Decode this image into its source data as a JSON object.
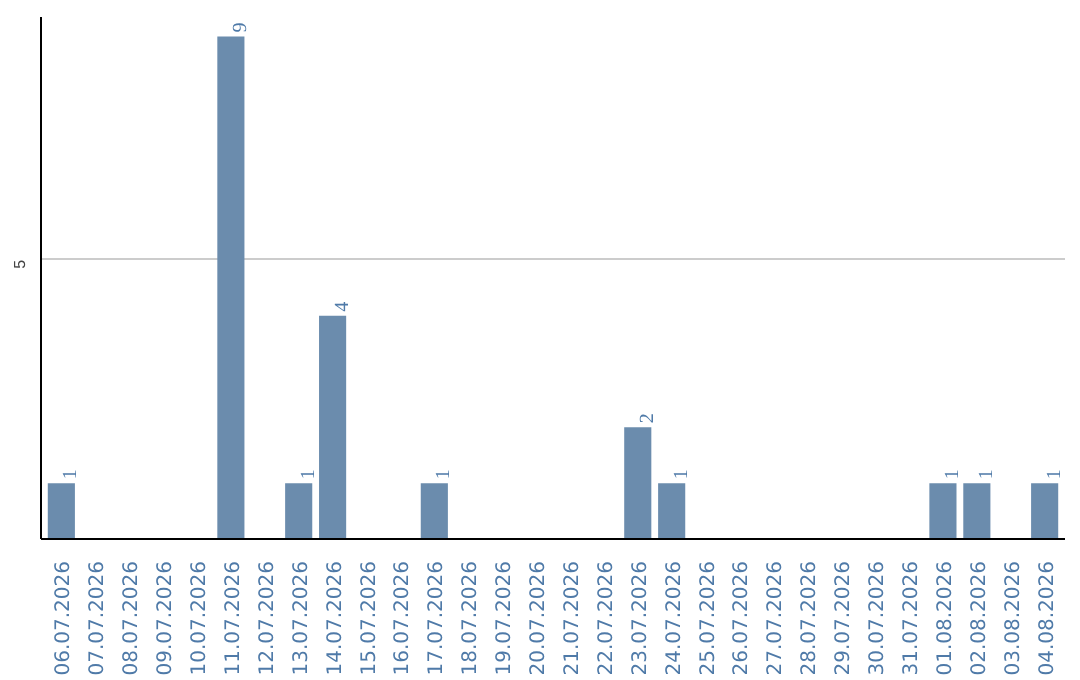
{
  "chart_data": {
    "type": "bar",
    "categories": [
      "06.07.2026",
      "07.07.2026",
      "08.07.2026",
      "09.07.2026",
      "10.07.2026",
      "11.07.2026",
      "12.07.2026",
      "13.07.2026",
      "14.07.2026",
      "15.07.2026",
      "16.07.2026",
      "17.07.2026",
      "18.07.2026",
      "19.07.2026",
      "20.07.2026",
      "21.07.2026",
      "22.07.2026",
      "23.07.2026",
      "24.07.2026",
      "25.07.2026",
      "26.07.2026",
      "27.07.2026",
      "28.07.2026",
      "29.07.2026",
      "30.07.2026",
      "31.07.2026",
      "01.08.2026",
      "02.08.2026",
      "03.08.2026",
      "04.08.2026"
    ],
    "values": [
      1,
      0,
      0,
      0,
      0,
      9,
      0,
      1,
      4,
      0,
      0,
      1,
      0,
      0,
      0,
      0,
      0,
      2,
      1,
      0,
      0,
      0,
      0,
      0,
      0,
      0,
      1,
      1,
      0,
      1
    ],
    "value_labels": [
      "1",
      null,
      null,
      null,
      null,
      "9",
      null,
      "1",
      "4",
      null,
      null,
      "1",
      null,
      null,
      null,
      null,
      null,
      "2",
      "1",
      null,
      null,
      null,
      null,
      null,
      null,
      null,
      "1",
      "1",
      null,
      "1"
    ],
    "color": "#6b8cad",
    "ylim": [
      0,
      9.35
    ],
    "yticks": [
      5
    ],
    "grid": "y"
  }
}
